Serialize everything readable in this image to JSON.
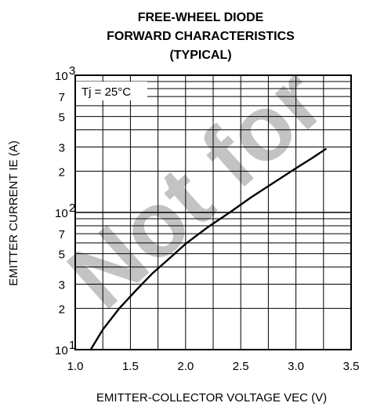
{
  "chart_data": {
    "type": "line",
    "title_lines": [
      "FREE-WHEEL DIODE",
      "FORWARD CHARACTERISTICS",
      "(TYPICAL)"
    ],
    "xlabel": "EMITTER-COLLECTOR VOLTAGE VEC (V)",
    "ylabel": "EMITTER CURRENT IE (A)",
    "annotation": "Tj = 25°C",
    "xlim": [
      1.0,
      3.5
    ],
    "ylim": [
      10,
      1000
    ],
    "yscale": "log",
    "grid": true,
    "x_ticks": [
      1.0,
      1.5,
      2.0,
      2.5,
      3.0,
      3.5
    ],
    "x_tick_labels": [
      "1.0",
      "1.5",
      "2.0",
      "2.5",
      "3.0",
      "3.5"
    ],
    "y_ticks": [
      {
        "value": 10,
        "base": "10",
        "exp": "1"
      },
      {
        "value": 20,
        "label": "2"
      },
      {
        "value": 30,
        "label": "3"
      },
      {
        "value": 50,
        "label": "5"
      },
      {
        "value": 70,
        "label": "7"
      },
      {
        "value": 100,
        "base": "10",
        "exp": "2"
      },
      {
        "value": 200,
        "label": "2"
      },
      {
        "value": 300,
        "label": "3"
      },
      {
        "value": 500,
        "label": "5"
      },
      {
        "value": 700,
        "label": "7"
      },
      {
        "value": 1000,
        "base": "10",
        "exp": "3"
      }
    ],
    "series": [
      {
        "x": [
          1.14,
          1.25,
          1.4,
          1.55,
          1.7,
          1.85,
          2.0,
          2.2,
          2.4,
          2.6,
          2.8,
          3.0,
          3.15,
          3.27
        ],
        "y": [
          10,
          14,
          20,
          27,
          36,
          46,
          59,
          78,
          100,
          130,
          165,
          210,
          250,
          290
        ]
      }
    ]
  },
  "watermark": "Not for"
}
